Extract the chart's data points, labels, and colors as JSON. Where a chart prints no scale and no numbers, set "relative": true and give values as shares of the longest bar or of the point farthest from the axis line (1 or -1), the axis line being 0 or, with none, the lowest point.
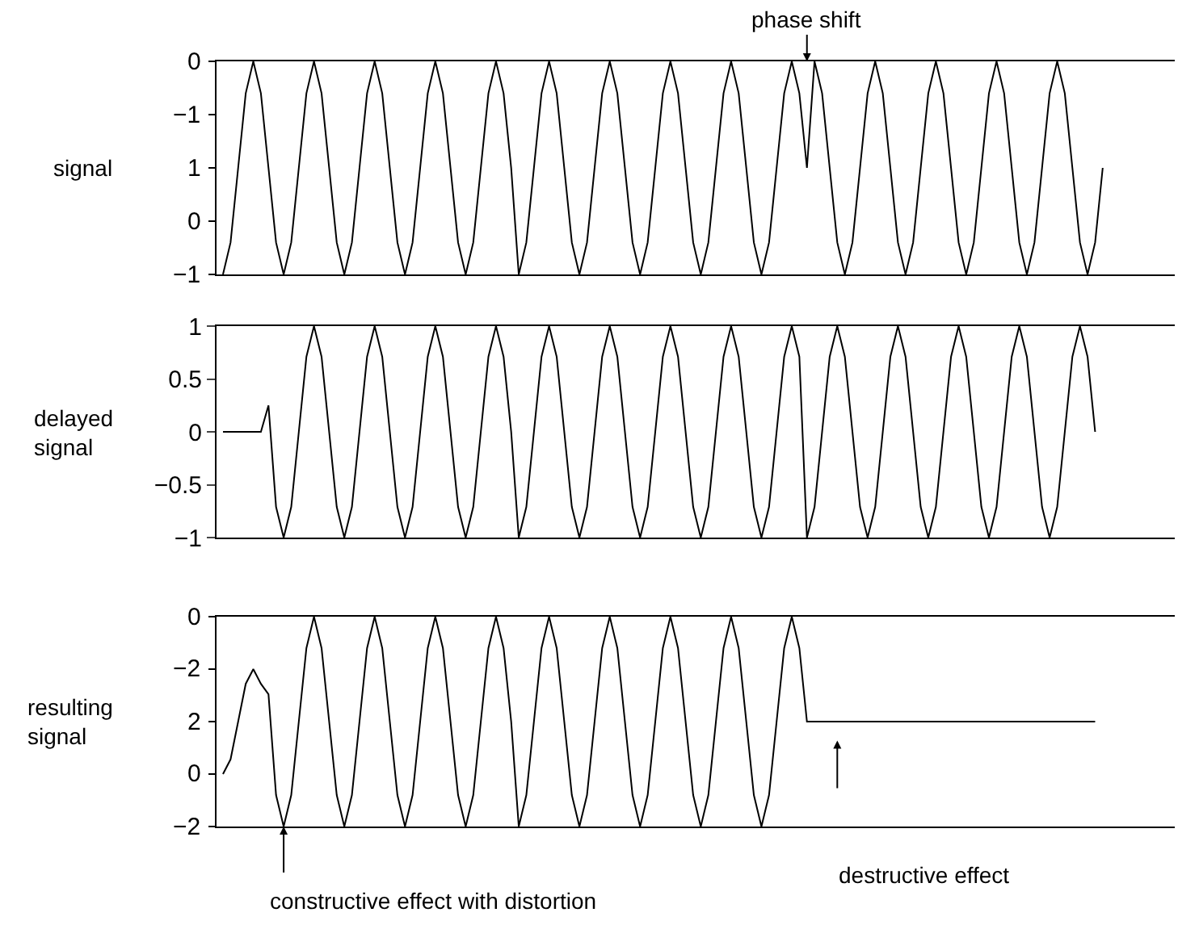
{
  "chart_data": [
    {
      "type": "line",
      "relative": true,
      "ylabel": "signal",
      "annotations": [
        "phase shift",
        "0",
        "−1",
        "1",
        "0",
        "−1"
      ],
      "marker": "none",
      "line_style": "solid",
      "categories": [
        null,
        null,
        null,
        null,
        null,
        null,
        null,
        null,
        null,
        null,
        null,
        null,
        null,
        null,
        null,
        null,
        null,
        null,
        null,
        null,
        null,
        null,
        null,
        null,
        null,
        null,
        null,
        null,
        null,
        null,
        null,
        null,
        null,
        null,
        null,
        null,
        null,
        null,
        null,
        null,
        null,
        null,
        null,
        null,
        null,
        null,
        null,
        null,
        null,
        null,
        null,
        null,
        null,
        null,
        null,
        null,
        null,
        null,
        null,
        null,
        null,
        null,
        null,
        null,
        null,
        null,
        null,
        null,
        null,
        null,
        null,
        null,
        null,
        null,
        null,
        null,
        null,
        null,
        null,
        null,
        null,
        null,
        null,
        null,
        null,
        null,
        null,
        null,
        null,
        null,
        null,
        null,
        null,
        null,
        null,
        null,
        null,
        null,
        null,
        null,
        null,
        null,
        null,
        null,
        null,
        null,
        null,
        null,
        null,
        null,
        null,
        null,
        null,
        null,
        null,
        null,
        null,
        null,
        null,
        null,
        null,
        null,
        null,
        null,
        null,
        null
      ],
      "series": [
        {
          "color": "#000000",
          "values": [
            0,
            0.15,
            0.5,
            0.85,
            1,
            0.85,
            0.5,
            0.15,
            0,
            0.15,
            0.5,
            0.85,
            1,
            0.85,
            0.5,
            0.15,
            0,
            0.15,
            0.5,
            0.85,
            1,
            0.85,
            0.5,
            0.15,
            0,
            0.15,
            0.5,
            0.85,
            1,
            0.85,
            0.5,
            0.15,
            0,
            0.15,
            0.5,
            0.85,
            1,
            0.85,
            0.5,
            0,
            0.15,
            0.5,
            0.85,
            1,
            0.85,
            0.5,
            0.15,
            0,
            0.15,
            0.5,
            0.85,
            1,
            0.85,
            0.5,
            0.15,
            0,
            0.15,
            0.5,
            0.85,
            1,
            0.85,
            0.5,
            0.15,
            0,
            0.15,
            0.5,
            0.85,
            1,
            0.85,
            0.5,
            0.15,
            0,
            0.15,
            0.5,
            0.85,
            1,
            0.85,
            0.5,
            1,
            0.85,
            0.5,
            0.15,
            0,
            0.15,
            0.5,
            0.85,
            1,
            0.85,
            0.5,
            0.15,
            0,
            0.15,
            0.5,
            0.85,
            1,
            0.85,
            0.5,
            0.15,
            0,
            0.15,
            0.5,
            0.85,
            1,
            0.85,
            0.5,
            0.15,
            0,
            0.15,
            0.5,
            0.85,
            1,
            0.85,
            0.5,
            0.15,
            0,
            0.15,
            0.5,
            null,
            null,
            null,
            null,
            null,
            null,
            null,
            null,
            null
          ]
        }
      ]
    },
    {
      "type": "line",
      "ylabel": "delayed signal",
      "marker": "none",
      "line_style": "solid",
      "categories": [
        null,
        null,
        null,
        null,
        null,
        null,
        null,
        null,
        null,
        null,
        null,
        null,
        null,
        null,
        null,
        null,
        null,
        null,
        null,
        null,
        null,
        null,
        null,
        null,
        null,
        null,
        null,
        null,
        null,
        null,
        null,
        null,
        null,
        null,
        null,
        null,
        null,
        null,
        null,
        null,
        null,
        null,
        null,
        null,
        null,
        null,
        null,
        null,
        null,
        null,
        null,
        null,
        null,
        null,
        null,
        null,
        null,
        null,
        null,
        null,
        null,
        null,
        null,
        null,
        null,
        null,
        null,
        null,
        null,
        null,
        null,
        null,
        null,
        null,
        null,
        null,
        null,
        null,
        null,
        null,
        null,
        null,
        null,
        null,
        null,
        null,
        null,
        null,
        null,
        null,
        null,
        null,
        null,
        null,
        null,
        null,
        null,
        null,
        null,
        null,
        null,
        null,
        null,
        null,
        null,
        null,
        null,
        null,
        null,
        null,
        null,
        null,
        null,
        null,
        null,
        null,
        null,
        null,
        null,
        null,
        null,
        null,
        null,
        null,
        null,
        null
      ],
      "series": [
        {
          "color": "#000000",
          "values": [
            0,
            0,
            0,
            0,
            0,
            0,
            0.25,
            -0.71,
            -1,
            -0.71,
            0,
            0.71,
            1,
            0.71,
            0,
            -0.71,
            -1,
            -0.71,
            0,
            0.71,
            1,
            0.71,
            0,
            -0.71,
            -1,
            -0.71,
            0,
            0.71,
            1,
            0.71,
            0,
            -0.71,
            -1,
            -0.71,
            0,
            0.71,
            1,
            0.71,
            0,
            -1,
            -0.71,
            0,
            0.71,
            1,
            0.71,
            0,
            -0.71,
            -1,
            -0.71,
            0,
            0.71,
            1,
            0.71,
            0,
            -0.71,
            -1,
            -0.71,
            0,
            0.71,
            1,
            0.71,
            0,
            -0.71,
            -1,
            -0.71,
            0,
            0.71,
            1,
            0.71,
            0,
            -0.71,
            -1,
            -0.71,
            0,
            0.71,
            1,
            0.71,
            -1,
            -0.71,
            0,
            0.71,
            1,
            0.71,
            0,
            -0.71,
            -1,
            -0.71,
            0,
            0.71,
            1,
            0.71,
            0,
            -0.71,
            -1,
            -0.71,
            0,
            0.71,
            1,
            0.71,
            0,
            -0.71,
            -1,
            -0.71,
            0,
            0.71,
            1,
            0.71,
            0,
            -0.71,
            -1,
            -0.71,
            0,
            0.71,
            1,
            0.71,
            0,
            null,
            null,
            null,
            null,
            null,
            null,
            null,
            null,
            null,
            null
          ]
        }
      ],
      "ylim": [
        -1,
        1
      ],
      "yticks": [
        1,
        0.5,
        0,
        {
          "value": -0.5,
          "label": "−0.5"
        },
        {
          "value": -1,
          "label": "−1"
        }
      ]
    },
    {
      "type": "line",
      "relative": true,
      "ylabel": "resulting signal",
      "annotations": [
        "constructive effect with distortion",
        "destructive effect",
        "0",
        "−2",
        "2",
        "0",
        "−2"
      ],
      "marker": "none",
      "line_style": "solid",
      "categories": [
        null,
        null,
        null,
        null,
        null,
        null,
        null,
        null,
        null,
        null,
        null,
        null,
        null,
        null,
        null,
        null,
        null,
        null,
        null,
        null,
        null,
        null,
        null,
        null,
        null,
        null,
        null,
        null,
        null,
        null,
        null,
        null,
        null,
        null,
        null,
        null,
        null,
        null,
        null,
        null,
        null,
        null,
        null,
        null,
        null,
        null,
        null,
        null,
        null,
        null,
        null,
        null,
        null,
        null,
        null,
        null,
        null,
        null,
        null,
        null,
        null,
        null,
        null,
        null,
        null,
        null,
        null,
        null,
        null,
        null,
        null,
        null,
        null,
        null,
        null,
        null,
        null,
        null,
        null,
        null,
        null,
        null,
        null,
        null,
        null,
        null,
        null,
        null,
        null,
        null,
        null,
        null,
        null,
        null,
        null,
        null,
        null,
        null,
        null,
        null,
        null,
        null,
        null,
        null,
        null,
        null,
        null,
        null,
        null,
        null,
        null,
        null,
        null,
        null,
        null,
        null,
        null,
        null,
        null,
        null,
        null,
        null,
        null,
        null,
        null,
        null
      ],
      "series": [
        {
          "color": "#000000",
          "values": [
            0.25,
            0.32,
            0.5,
            0.68,
            0.75,
            0.68,
            0.63,
            0.15,
            0,
            0.15,
            0.5,
            0.85,
            1,
            0.85,
            0.5,
            0.15,
            0,
            0.15,
            0.5,
            0.85,
            1,
            0.85,
            0.5,
            0.15,
            0,
            0.15,
            0.5,
            0.85,
            1,
            0.85,
            0.5,
            0.15,
            0,
            0.15,
            0.5,
            0.85,
            1,
            0.85,
            0.5,
            0,
            0.15,
            0.5,
            0.85,
            1,
            0.85,
            0.5,
            0.15,
            0,
            0.15,
            0.5,
            0.85,
            1,
            0.85,
            0.5,
            0.15,
            0,
            0.15,
            0.5,
            0.85,
            1,
            0.85,
            0.5,
            0.15,
            0,
            0.15,
            0.5,
            0.85,
            1,
            0.85,
            0.5,
            0.15,
            0,
            0.15,
            0.5,
            0.85,
            1,
            0.85,
            0.5,
            0.5,
            0.5,
            0.5,
            0.5,
            0.5,
            0.5,
            0.5,
            0.5,
            0.5,
            0.5,
            0.5,
            0.5,
            0.5,
            0.5,
            0.5,
            0.5,
            0.5,
            0.5,
            0.5,
            0.5,
            0.5,
            0.5,
            0.5,
            0.5,
            0.5,
            0.5,
            0.5,
            0.5,
            0.5,
            0.5,
            0.5,
            0.5,
            0.5,
            0.5,
            0.5,
            0.5,
            0.5,
            0.5,
            null,
            null,
            null,
            null,
            null,
            null,
            null,
            null,
            null,
            null
          ]
        }
      ]
    }
  ]
}
